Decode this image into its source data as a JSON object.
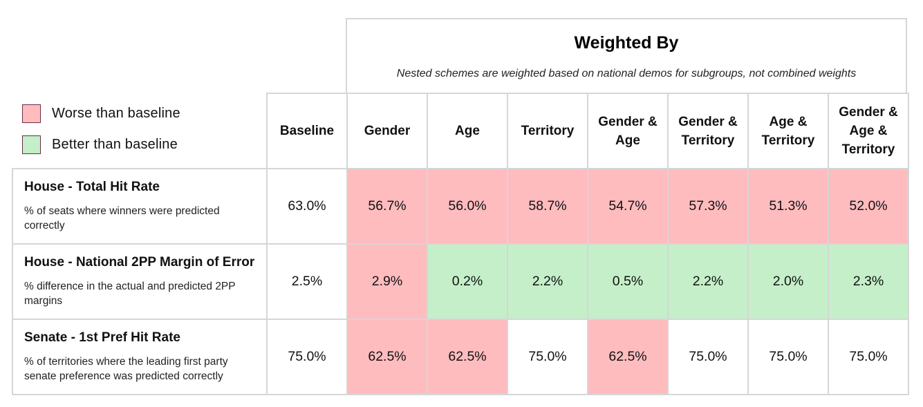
{
  "header": {
    "title": "Weighted By",
    "subtitle": "Nested schemes are weighted based on national demos for subgroups, not combined weights"
  },
  "legend": [
    {
      "label": "Worse than baseline",
      "color": "#ffbcbf",
      "status": "worse"
    },
    {
      "label": "Better than baseline",
      "color": "#c4efc9",
      "status": "better"
    }
  ],
  "columns": [
    "Baseline",
    "Gender",
    "Age",
    "Territory",
    "Gender &\nAge",
    "Gender &\nTerritory",
    "Age &\nTerritory",
    "Gender &\nAge &\nTerritory"
  ],
  "rows": [
    {
      "title": "House - Total Hit Rate",
      "description": "% of seats where winners were predicted correctly"
    },
    {
      "title": "House - National 2PP Margin of Error",
      "description": "% difference in the actual and predicted 2PP margins"
    },
    {
      "title": "Senate - 1st Pref Hit Rate",
      "description": "% of territories where the leading first party senate preference was predicted correctly"
    }
  ],
  "chart_data": {
    "type": "table",
    "title": "Weighted By",
    "subtitle": "Nested schemes are weighted based on national demos for subgroups, not combined weights",
    "columns": [
      "Baseline",
      "Gender",
      "Age",
      "Territory",
      "Gender & Age",
      "Gender & Territory",
      "Age & Territory",
      "Gender & Age & Territory"
    ],
    "rows": [
      {
        "name": "House - Total Hit Rate",
        "values": [
          "63.0%",
          "56.7%",
          "56.0%",
          "58.7%",
          "54.7%",
          "57.3%",
          "51.3%",
          "52.0%"
        ],
        "status": [
          "neutral",
          "worse",
          "worse",
          "worse",
          "worse",
          "worse",
          "worse",
          "worse"
        ]
      },
      {
        "name": "House - National 2PP Margin of Error",
        "values": [
          "2.5%",
          "2.9%",
          "0.2%",
          "2.2%",
          "0.5%",
          "2.2%",
          "2.0%",
          "2.3%"
        ],
        "status": [
          "neutral",
          "worse",
          "better",
          "better",
          "better",
          "better",
          "better",
          "better"
        ]
      },
      {
        "name": "Senate - 1st Pref Hit Rate",
        "values": [
          "75.0%",
          "62.5%",
          "62.5%",
          "75.0%",
          "62.5%",
          "75.0%",
          "75.0%",
          "75.0%"
        ],
        "status": [
          "neutral",
          "worse",
          "worse",
          "neutral",
          "worse",
          "neutral",
          "neutral",
          "neutral"
        ]
      }
    ]
  }
}
